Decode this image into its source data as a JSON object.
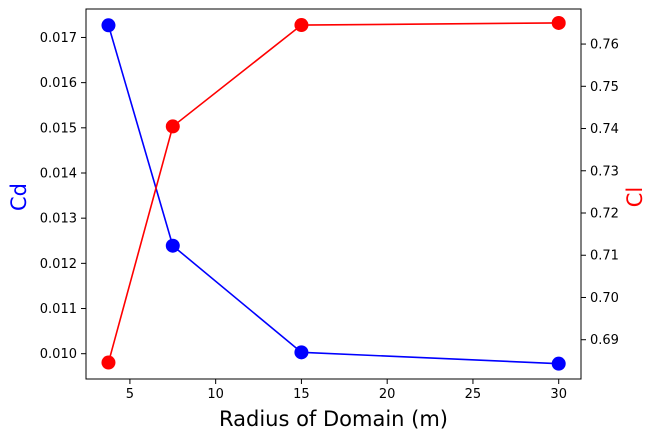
{
  "chart_data": {
    "type": "line",
    "xlabel": "Radius of Domain (m)",
    "ylabel_left": "Cd",
    "ylabel_right": "Cl",
    "x": [
      3.75,
      7.5,
      15,
      30
    ],
    "xlim": [
      2.44,
      31.3
    ],
    "ylim_left": [
      0.00944,
      0.01763
    ],
    "ylim_right": [
      0.6807,
      0.7683
    ],
    "x_ticks": [
      5,
      10,
      15,
      20,
      25,
      30
    ],
    "x_tick_labels": [
      "5",
      "10",
      "15",
      "20",
      "25",
      "30"
    ],
    "y_left_ticks": [
      0.01,
      0.011,
      0.012,
      0.013,
      0.014,
      0.015,
      0.016,
      0.017
    ],
    "y_left_tick_labels": [
      "0.010",
      "0.011",
      "0.012",
      "0.013",
      "0.014",
      "0.015",
      "0.016",
      "0.017"
    ],
    "y_right_ticks": [
      0.69,
      0.7,
      0.71,
      0.72,
      0.73,
      0.74,
      0.75,
      0.76
    ],
    "y_right_tick_labels": [
      "0.69",
      "0.70",
      "0.71",
      "0.72",
      "0.73",
      "0.74",
      "0.75",
      "0.76"
    ],
    "grid": false,
    "series": [
      {
        "axis": "left",
        "color": "#0000ff",
        "marker": "circle",
        "values": [
          0.01727,
          0.01239,
          0.01003,
          0.00978
        ]
      },
      {
        "axis": "right",
        "color": "#ff0000",
        "marker": "circle",
        "values": [
          0.6846,
          0.7405,
          0.7645,
          0.765
        ]
      }
    ]
  }
}
